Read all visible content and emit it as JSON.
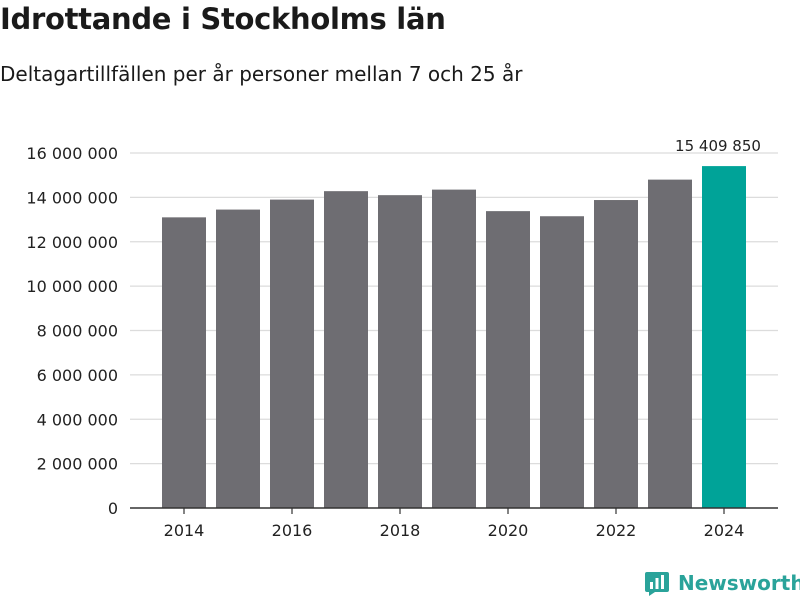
{
  "header": {
    "title": "Idrottande i Stockholms län",
    "subtitle": "Deltagartillfällen per år personer mellan 7 och 25 år"
  },
  "brand": {
    "name": "Newsworthy",
    "icon": "bar-chart-icon",
    "color": "#2aa39a"
  },
  "colors": {
    "bar": "#6e6d72",
    "highlight": "#00a398",
    "grid": "#dcdcdc",
    "axis": "#333333"
  },
  "chart_data": {
    "type": "bar",
    "title": "Idrottande i Stockholms län",
    "subtitle": "Deltagartillfällen per år personer mellan 7 och 25 år",
    "xlabel": "",
    "ylabel": "",
    "categories": [
      "2014",
      "2015",
      "2016",
      "2017",
      "2018",
      "2019",
      "2020",
      "2021",
      "2022",
      "2023",
      "2024"
    ],
    "values": [
      13100000,
      13450000,
      13900000,
      14280000,
      14100000,
      14350000,
      13380000,
      13150000,
      13880000,
      14800000,
      15409850
    ],
    "highlight_index": 10,
    "data_labels": [
      {
        "index": 10,
        "text": "15 409 850"
      }
    ],
    "ylim": [
      0,
      16000000
    ],
    "yticks": [
      0,
      2000000,
      4000000,
      6000000,
      8000000,
      10000000,
      12000000,
      14000000,
      16000000
    ],
    "ytick_labels": [
      "0",
      "2 000 000",
      "4 000 000",
      "6 000 000",
      "8 000 000",
      "10 000 000",
      "12 000 000",
      "14 000 000",
      "16 000 000"
    ],
    "xtick_labels": [
      "2014",
      "2016",
      "2018",
      "2020",
      "2022",
      "2024"
    ],
    "grid": true
  }
}
